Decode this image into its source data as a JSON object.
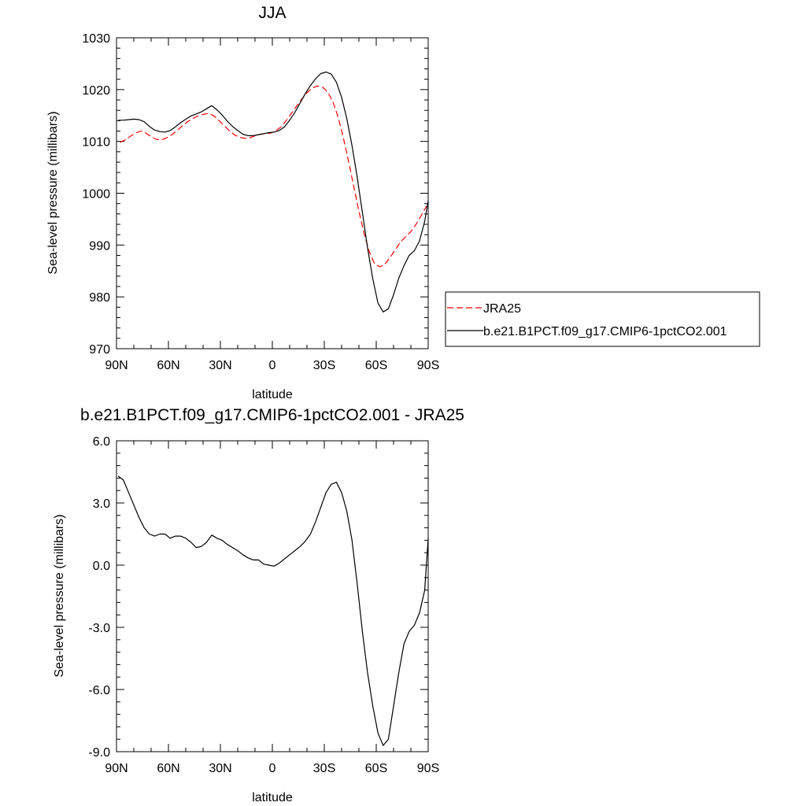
{
  "chart_data": [
    {
      "type": "line",
      "title": "JJA",
      "xlabel": "latitude",
      "ylabel": "Sea-level pressure (millibars)",
      "xlim": [
        90,
        -90
      ],
      "ylim": [
        970,
        1030
      ],
      "x_ticks": [
        90,
        60,
        30,
        0,
        -30,
        -60,
        -90
      ],
      "x_tick_labels": [
        "90N",
        "60N",
        "30N",
        "0",
        "30S",
        "60S",
        "90S"
      ],
      "y_ticks": [
        970,
        980,
        990,
        1000,
        1010,
        1020,
        1030
      ],
      "y_tick_labels": [
        "970",
        "980",
        "990",
        "1000",
        "1010",
        "1020",
        "1030"
      ],
      "grid": false,
      "legend_position": "right",
      "series": [
        {
          "name": "JRA25",
          "color": "#ff0000",
          "dashed": true,
          "x": [
            88,
            85,
            82,
            79,
            76,
            73,
            70,
            67,
            64,
            61,
            58,
            55,
            52,
            49,
            46,
            43,
            40,
            37,
            34,
            31,
            28,
            25,
            22,
            19,
            16,
            13,
            10,
            7,
            4,
            1,
            -2,
            -5,
            -8,
            -11,
            -14,
            -17,
            -20,
            -23,
            -26,
            -29,
            -32,
            -35,
            -38,
            -41,
            -44,
            -47,
            -50,
            -53,
            -56,
            -59,
            -62,
            -65,
            -68,
            -71,
            -74,
            -77,
            -80,
            -83,
            -86,
            -89
          ],
          "y": [
            1009.8,
            1010.3,
            1011.0,
            1011.6,
            1012.0,
            1011.6,
            1010.9,
            1010.4,
            1010.3,
            1010.7,
            1011.3,
            1012.1,
            1013.0,
            1013.8,
            1014.4,
            1014.9,
            1015.2,
            1015.4,
            1015.0,
            1014.1,
            1013.1,
            1012.1,
            1011.3,
            1010.8,
            1010.6,
            1010.7,
            1011.1,
            1011.4,
            1011.5,
            1011.6,
            1012.0,
            1012.8,
            1014.0,
            1015.4,
            1016.8,
            1018.2,
            1019.4,
            1020.3,
            1020.7,
            1020.5,
            1019.5,
            1017.6,
            1014.7,
            1010.7,
            1006.2,
            1001.3,
            996.5,
            992.2,
            988.7,
            986.4,
            985.8,
            986.3,
            987.6,
            989.1,
            990.6,
            991.6,
            992.6,
            994.0,
            995.7,
            997.5
          ]
        },
        {
          "name": "b.e21.B1PCT.f09_g17.CMIP6-1pctCO2.001",
          "color": "#000000",
          "dashed": false,
          "x": [
            89,
            86,
            83,
            80,
            77,
            74,
            71,
            68,
            65,
            62,
            59,
            56,
            53,
            50,
            47,
            44,
            41,
            38,
            35,
            32,
            29,
            26,
            23,
            20,
            17,
            14,
            11,
            8,
            5,
            2,
            -1,
            -4,
            -7,
            -10,
            -13,
            -16,
            -19,
            -22,
            -25,
            -28,
            -31,
            -34,
            -37,
            -40,
            -43,
            -46,
            -49,
            -52,
            -55,
            -58,
            -61,
            -64,
            -67,
            -70,
            -73,
            -76,
            -79,
            -82,
            -85,
            -88,
            -90
          ],
          "y": [
            1014.1,
            1014.1,
            1014.2,
            1014.3,
            1014.2,
            1013.8,
            1012.9,
            1012.2,
            1011.9,
            1011.8,
            1012.1,
            1012.8,
            1013.6,
            1014.3,
            1014.9,
            1015.3,
            1015.7,
            1016.3,
            1016.9,
            1016.1,
            1015.1,
            1013.9,
            1012.9,
            1012.1,
            1011.4,
            1011.1,
            1011.1,
            1011.3,
            1011.5,
            1011.7,
            1011.8,
            1012.1,
            1012.8,
            1014.1,
            1015.6,
            1017.4,
            1019.2,
            1020.8,
            1022.1,
            1023.1,
            1023.4,
            1023.0,
            1021.4,
            1018.5,
            1014.4,
            1009.2,
            1003.1,
            996.3,
            989.4,
            983.5,
            978.8,
            977.1,
            977.7,
            980.4,
            983.6,
            986.0,
            988.0,
            988.9,
            990.8,
            994.6,
            998.6
          ]
        }
      ]
    },
    {
      "type": "line",
      "title": "b.e21.B1PCT.f09_g17.CMIP6-1pctCO2.001 - JRA25",
      "xlabel": "latitude",
      "ylabel": "Sea-level pressure (millibars)",
      "xlim": [
        90,
        -90
      ],
      "ylim": [
        -9.0,
        6.0
      ],
      "x_ticks": [
        90,
        60,
        30,
        0,
        -30,
        -60,
        -90
      ],
      "x_tick_labels": [
        "90N",
        "60N",
        "30N",
        "0",
        "30S",
        "60S",
        "90S"
      ],
      "y_ticks": [
        -9.0,
        -6.0,
        -3.0,
        0.0,
        3.0,
        6.0
      ],
      "y_tick_labels": [
        "-9.0",
        "-6.0",
        "-3.0",
        "0.0",
        "3.0",
        "6.0"
      ],
      "grid": false,
      "series": [
        {
          "color": "#000000",
          "dashed": false,
          "x": [
            89,
            86,
            83,
            80,
            77,
            74,
            71,
            68,
            65,
            62,
            59,
            56,
            53,
            50,
            47,
            44,
            41,
            38,
            35,
            32,
            29,
            26,
            23,
            20,
            17,
            14,
            11,
            8,
            5,
            2,
            -1,
            -4,
            -7,
            -10,
            -13,
            -16,
            -19,
            -22,
            -25,
            -28,
            -31,
            -34,
            -37,
            -40,
            -43,
            -46,
            -49,
            -52,
            -55,
            -58,
            -61,
            -64,
            -67,
            -70,
            -73,
            -76,
            -79,
            -82,
            -85,
            -88,
            -90
          ],
          "y": [
            4.3,
            4.1,
            3.5,
            2.9,
            2.3,
            1.8,
            1.5,
            1.4,
            1.5,
            1.5,
            1.3,
            1.4,
            1.4,
            1.3,
            1.1,
            0.85,
            0.9,
            1.1,
            1.45,
            1.3,
            1.2,
            1.0,
            0.85,
            0.7,
            0.5,
            0.35,
            0.25,
            0.25,
            0.05,
            0.0,
            -0.05,
            0.1,
            0.3,
            0.5,
            0.7,
            0.9,
            1.15,
            1.5,
            2.1,
            2.8,
            3.5,
            3.9,
            4.0,
            3.5,
            2.6,
            1.2,
            -0.9,
            -3.2,
            -5.2,
            -6.8,
            -8.1,
            -8.7,
            -8.4,
            -6.8,
            -5.2,
            -3.8,
            -3.2,
            -2.9,
            -2.3,
            -1.2,
            1.3
          ]
        }
      ]
    }
  ]
}
